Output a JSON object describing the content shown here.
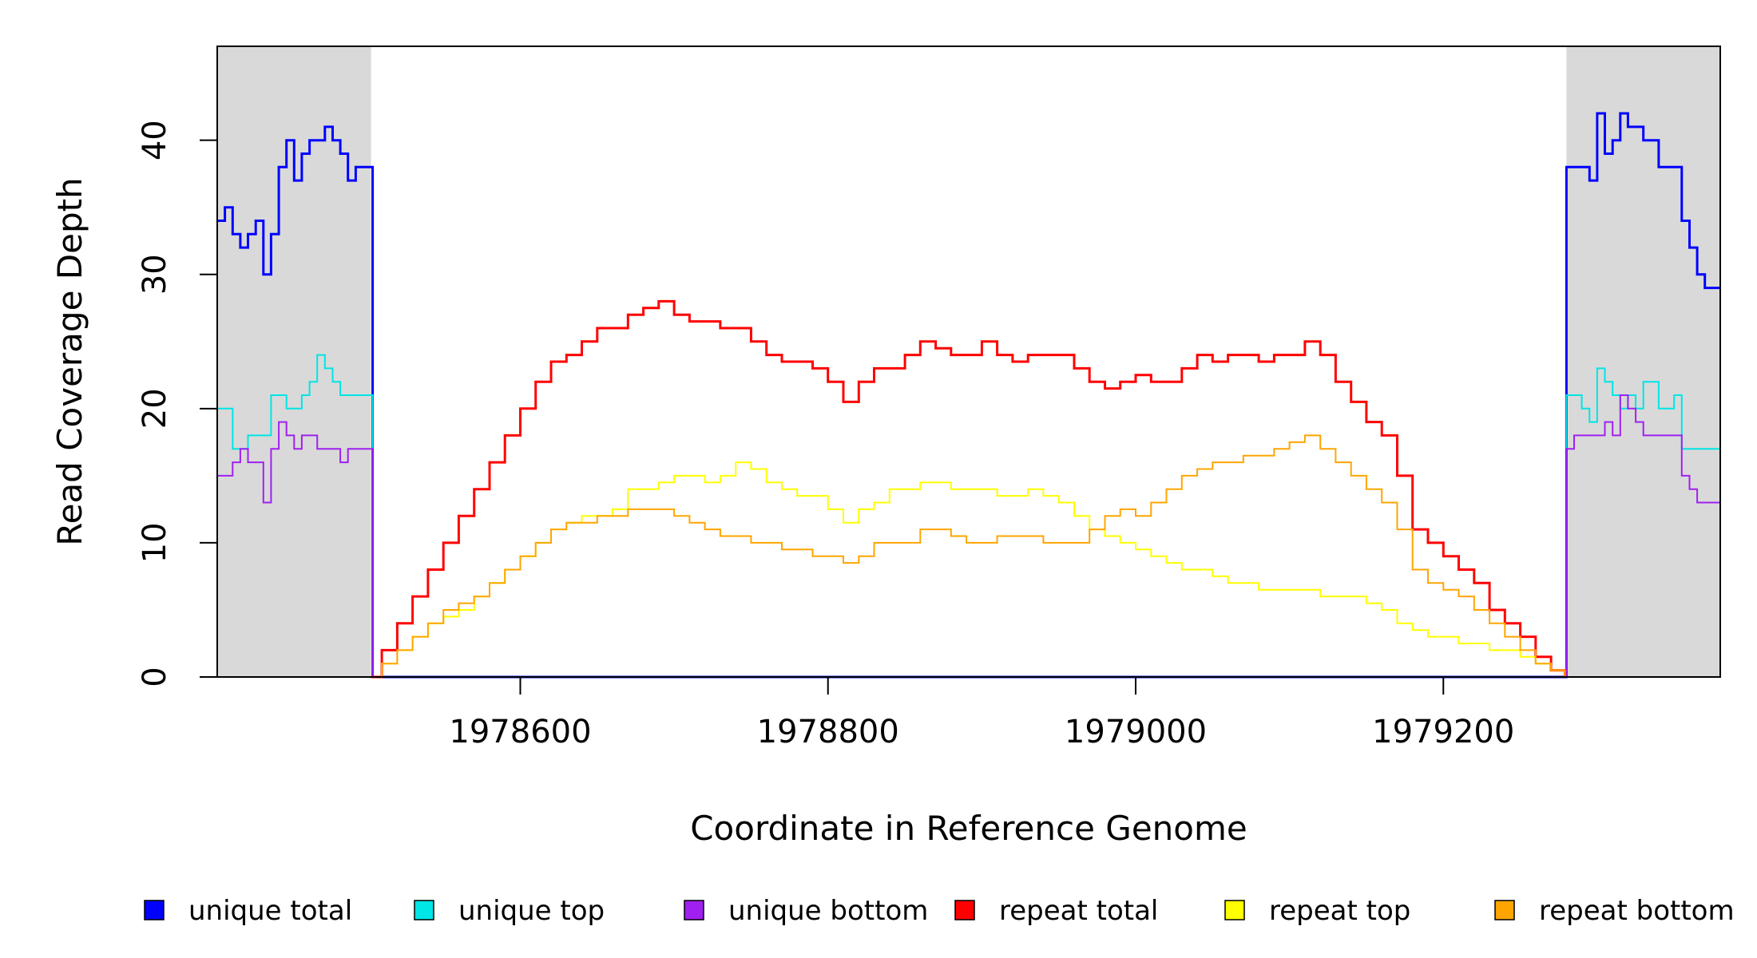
{
  "chart_data": {
    "type": "line",
    "title": "",
    "xlabel": "Coordinate in Reference Genome",
    "ylabel": "Read Coverage Depth",
    "xlim": [
      1978403,
      1979380
    ],
    "ylim": [
      0,
      47
    ],
    "x_ticks": [
      1978600,
      1978800,
      1979000,
      1979200
    ],
    "x_tick_labels": [
      "1978600",
      "1978800",
      "1979000",
      "1979200"
    ],
    "y_ticks": [
      0,
      10,
      20,
      30,
      40
    ],
    "y_tick_labels": [
      "0",
      "10",
      "20",
      "30",
      "40"
    ],
    "shaded_regions": [
      [
        1978403,
        1978503
      ],
      [
        1979280,
        1979380
      ]
    ],
    "shade_color": "#d9d9d9",
    "grid": false,
    "legend_position": "bottom",
    "series": [
      {
        "name": "unique total",
        "color": "#0000ff",
        "x": [
          1978403,
          1978408,
          1978413,
          1978418,
          1978423,
          1978428,
          1978433,
          1978438,
          1978443,
          1978448,
          1978453,
          1978458,
          1978463,
          1978468,
          1978473,
          1978478,
          1978483,
          1978488,
          1978493,
          1978498,
          1978503,
          1978504,
          1979279,
          1979280,
          1979285,
          1979290,
          1979295,
          1979300,
          1979305,
          1979310,
          1979315,
          1979320,
          1979325,
          1979330,
          1979335,
          1979340,
          1979345,
          1979350,
          1979355,
          1979360,
          1979365,
          1979370,
          1979375,
          1979380
        ],
        "y": [
          34,
          35,
          33,
          32,
          33,
          34,
          30,
          33,
          38,
          40,
          37,
          39,
          40,
          40,
          41,
          40,
          39,
          37,
          38,
          38,
          38,
          0,
          0,
          38,
          38,
          38,
          37,
          42,
          39,
          40,
          42,
          41,
          41,
          40,
          40,
          38,
          38,
          38,
          34,
          32,
          30,
          29,
          29,
          29
        ]
      },
      {
        "name": "unique top",
        "color": "#00e5e5",
        "x": [
          1978403,
          1978408,
          1978413,
          1978418,
          1978423,
          1978428,
          1978433,
          1978438,
          1978443,
          1978448,
          1978453,
          1978458,
          1978463,
          1978468,
          1978473,
          1978478,
          1978483,
          1978488,
          1978493,
          1978498,
          1978503,
          1978504,
          1979279,
          1979280,
          1979285,
          1979290,
          1979295,
          1979300,
          1979305,
          1979310,
          1979315,
          1979320,
          1979325,
          1979330,
          1979335,
          1979340,
          1979345,
          1979350,
          1979355,
          1979360,
          1979365,
          1979370,
          1979375,
          1979380
        ],
        "y": [
          20,
          20,
          17,
          17,
          18,
          18,
          18,
          21,
          21,
          20,
          20,
          21,
          22,
          24,
          23,
          22,
          21,
          21,
          21,
          21,
          21,
          0,
          0,
          21,
          21,
          20,
          19,
          23,
          22,
          21,
          20,
          21,
          20,
          22,
          22,
          20,
          20,
          21,
          17,
          17,
          17,
          17,
          17,
          17
        ]
      },
      {
        "name": "unique bottom",
        "color": "#a020f0",
        "x": [
          1978403,
          1978408,
          1978413,
          1978418,
          1978423,
          1978428,
          1978433,
          1978438,
          1978443,
          1978448,
          1978453,
          1978458,
          1978463,
          1978468,
          1978473,
          1978478,
          1978483,
          1978488,
          1978493,
          1978498,
          1978503,
          1978504,
          1979279,
          1979280,
          1979285,
          1979290,
          1979295,
          1979300,
          1979305,
          1979310,
          1979315,
          1979320,
          1979325,
          1979330,
          1979335,
          1979340,
          1979345,
          1979350,
          1979355,
          1979360,
          1979365,
          1979370,
          1979375,
          1979380
        ],
        "y": [
          15,
          15,
          16,
          17,
          16,
          16,
          13,
          17,
          19,
          18,
          17,
          18,
          18,
          17,
          17,
          17,
          16,
          17,
          17,
          17,
          17,
          0,
          0,
          17,
          18,
          18,
          18,
          18,
          19,
          18,
          21,
          20,
          19,
          18,
          18,
          18,
          18,
          18,
          15,
          14,
          13,
          13,
          13,
          13
        ]
      },
      {
        "name": "repeat total",
        "color": "#ff0000",
        "x": [
          1978503,
          1978510,
          1978520,
          1978530,
          1978540,
          1978550,
          1978560,
          1978570,
          1978580,
          1978590,
          1978600,
          1978610,
          1978620,
          1978630,
          1978640,
          1978650,
          1978660,
          1978670,
          1978680,
          1978690,
          1978700,
          1978710,
          1978720,
          1978730,
          1978740,
          1978750,
          1978760,
          1978770,
          1978780,
          1978790,
          1978800,
          1978810,
          1978820,
          1978830,
          1978840,
          1978850,
          1978860,
          1978870,
          1978880,
          1978890,
          1978900,
          1978910,
          1978920,
          1978930,
          1978940,
          1978950,
          1978960,
          1978970,
          1978980,
          1978990,
          1979000,
          1979010,
          1979020,
          1979030,
          1979040,
          1979050,
          1979060,
          1979070,
          1979080,
          1979090,
          1979100,
          1979110,
          1979120,
          1979130,
          1979140,
          1979150,
          1979160,
          1979170,
          1979180,
          1979190,
          1979200,
          1979210,
          1979220,
          1979230,
          1979240,
          1979250,
          1979260,
          1979270,
          1979279
        ],
        "y": [
          0,
          2,
          4,
          6,
          8,
          10,
          12,
          14,
          16,
          18,
          20,
          22,
          23.5,
          24,
          25,
          26,
          26,
          27,
          27.5,
          28,
          27,
          26.5,
          26.5,
          26,
          26,
          25,
          24,
          23.5,
          23.5,
          23,
          22,
          20.5,
          22,
          23,
          23,
          24,
          25,
          24.5,
          24,
          24,
          25,
          24,
          23.5,
          24,
          24,
          24,
          23,
          22,
          21.5,
          22,
          22.5,
          22,
          22,
          23,
          24,
          23.5,
          24,
          24,
          23.5,
          24,
          24,
          25,
          24,
          22,
          20.5,
          19,
          18,
          15,
          11,
          10,
          9,
          8,
          7,
          5,
          4,
          3,
          1.5,
          0.5,
          0
        ]
      },
      {
        "name": "repeat top",
        "color": "#ffff00",
        "x": [
          1978503,
          1978510,
          1978520,
          1978530,
          1978540,
          1978550,
          1978560,
          1978570,
          1978580,
          1978590,
          1978600,
          1978610,
          1978620,
          1978630,
          1978640,
          1978650,
          1978660,
          1978670,
          1978680,
          1978690,
          1978700,
          1978710,
          1978720,
          1978730,
          1978740,
          1978750,
          1978760,
          1978770,
          1978780,
          1978790,
          1978800,
          1978810,
          1978820,
          1978830,
          1978840,
          1978850,
          1978860,
          1978870,
          1978880,
          1978890,
          1978900,
          1978910,
          1978920,
          1978930,
          1978940,
          1978950,
          1978960,
          1978970,
          1978980,
          1978990,
          1979000,
          1979010,
          1979020,
          1979030,
          1979040,
          1979050,
          1979060,
          1979070,
          1979080,
          1979090,
          1979100,
          1979110,
          1979120,
          1979130,
          1979140,
          1979150,
          1979160,
          1979170,
          1979180,
          1979190,
          1979200,
          1979210,
          1979220,
          1979230,
          1979240,
          1979250,
          1979260,
          1979270,
          1979279
        ],
        "y": [
          0,
          1,
          2,
          3,
          4,
          4.5,
          5,
          6,
          7,
          8,
          9,
          10,
          11,
          11.5,
          12,
          12,
          12.5,
          14,
          14,
          14.5,
          15,
          15,
          14.5,
          15,
          16,
          15.5,
          14.5,
          14,
          13.5,
          13.5,
          12.5,
          11.5,
          12.5,
          13,
          14,
          14,
          14.5,
          14.5,
          14,
          14,
          14,
          13.5,
          13.5,
          14,
          13.5,
          13,
          12,
          11,
          10.5,
          10,
          9.5,
          9,
          8.5,
          8,
          8,
          7.5,
          7,
          7,
          6.5,
          6.5,
          6.5,
          6.5,
          6,
          6,
          6,
          5.5,
          5,
          4,
          3.5,
          3,
          3,
          2.5,
          2.5,
          2,
          2,
          1.5,
          1,
          0.5,
          0
        ]
      },
      {
        "name": "repeat bottom",
        "color": "#ffa500",
        "x": [
          1978503,
          1978510,
          1978520,
          1978530,
          1978540,
          1978550,
          1978560,
          1978570,
          1978580,
          1978590,
          1978600,
          1978610,
          1978620,
          1978630,
          1978640,
          1978650,
          1978660,
          1978670,
          1978680,
          1978690,
          1978700,
          1978710,
          1978720,
          1978730,
          1978740,
          1978750,
          1978760,
          1978770,
          1978780,
          1978790,
          1978800,
          1978810,
          1978820,
          1978830,
          1978840,
          1978850,
          1978860,
          1978870,
          1978880,
          1978890,
          1978900,
          1978910,
          1978920,
          1978930,
          1978940,
          1978950,
          1978960,
          1978970,
          1978980,
          1978990,
          1979000,
          1979010,
          1979020,
          1979030,
          1979040,
          1979050,
          1979060,
          1979070,
          1979080,
          1979090,
          1979100,
          1979110,
          1979120,
          1979130,
          1979140,
          1979150,
          1979160,
          1979170,
          1979180,
          1979190,
          1979200,
          1979210,
          1979220,
          1979230,
          1979240,
          1979250,
          1979260,
          1979270,
          1979279
        ],
        "y": [
          0,
          1,
          2,
          3,
          4,
          5,
          5.5,
          6,
          7,
          8,
          9,
          10,
          11,
          11.5,
          11.5,
          12,
          12,
          12.5,
          12.5,
          12.5,
          12,
          11.5,
          11,
          10.5,
          10.5,
          10,
          10,
          9.5,
          9.5,
          9,
          9,
          8.5,
          9,
          10,
          10,
          10,
          11,
          11,
          10.5,
          10,
          10,
          10.5,
          10.5,
          10.5,
          10,
          10,
          10,
          11,
          12,
          12.5,
          12,
          13,
          14,
          15,
          15.5,
          16,
          16,
          16.5,
          16.5,
          17,
          17.5,
          18,
          17,
          16,
          15,
          14,
          13,
          11,
          8,
          7,
          6.5,
          6,
          5,
          4,
          3,
          2,
          1,
          0.5,
          0
        ]
      }
    ]
  }
}
